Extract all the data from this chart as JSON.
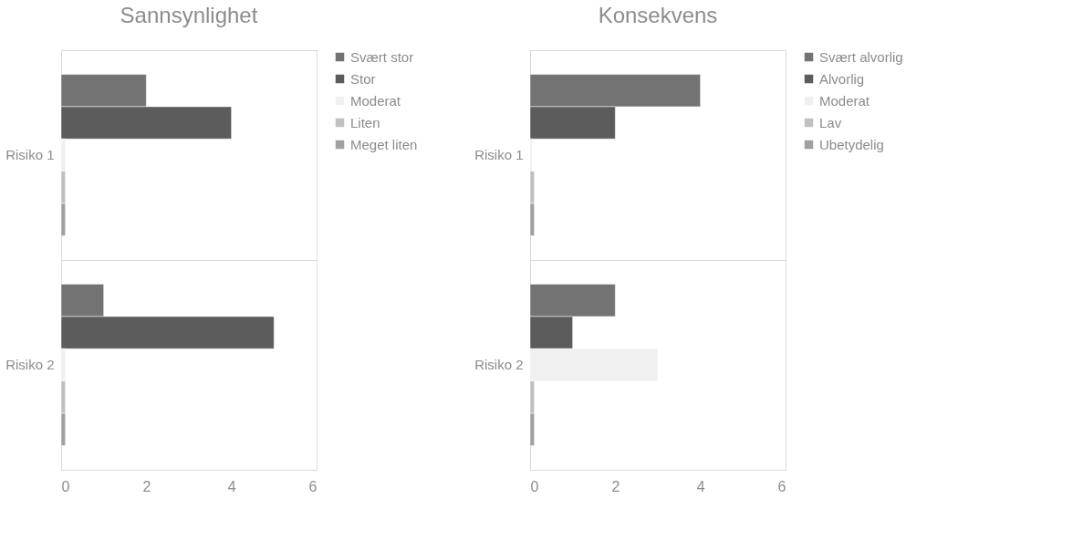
{
  "chart_data": [
    {
      "type": "bar",
      "orientation": "horizontal",
      "title": "Sannsynlighet",
      "categories": [
        "Risiko 1",
        "Risiko 2"
      ],
      "xlim": [
        0,
        6
      ],
      "xticks": [
        0,
        2,
        4,
        6
      ],
      "grid": "y",
      "legend": "right",
      "series": [
        {
          "name": "Svært stor",
          "color": "#737373",
          "values": [
            2,
            1
          ]
        },
        {
          "name": "Stor",
          "color": "#5c5c5c",
          "values": [
            4,
            5
          ]
        },
        {
          "name": "Moderat",
          "color": "#f0f0f0",
          "values": [
            0.1,
            0.1
          ]
        },
        {
          "name": "Liten",
          "color": "#c0c0c0",
          "values": [
            0.1,
            0.1
          ]
        },
        {
          "name": "Meget liten",
          "color": "#a0a0a0",
          "values": [
            0.1,
            0.1
          ]
        }
      ]
    },
    {
      "type": "bar",
      "orientation": "horizontal",
      "title": "Konsekvens",
      "categories": [
        "Risiko 1",
        "Risiko 2"
      ],
      "xlim": [
        0,
        6
      ],
      "xticks": [
        0,
        2,
        4,
        6
      ],
      "grid": "y",
      "legend": "right",
      "series": [
        {
          "name": "Svært alvorlig",
          "color": "#737373",
          "values": [
            4,
            2
          ]
        },
        {
          "name": "Alvorlig",
          "color": "#5c5c5c",
          "values": [
            2,
            1
          ]
        },
        {
          "name": "Moderat",
          "color": "#f0f0f0",
          "values": [
            0.05,
            3
          ]
        },
        {
          "name": "Lav",
          "color": "#c0c0c0",
          "values": [
            0.1,
            0.1
          ]
        },
        {
          "name": "Ubetydelig",
          "color": "#a0a0a0",
          "values": [
            0.1,
            0.1
          ]
        }
      ]
    }
  ]
}
